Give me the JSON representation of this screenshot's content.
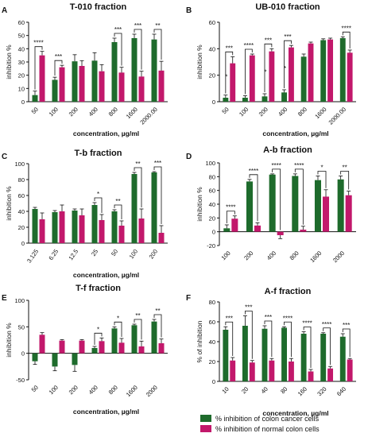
{
  "colors": {
    "cancer": "#1e6b2c",
    "normal": "#c2186b"
  },
  "legend": {
    "cancer": "% inhibition of colon cancer cells",
    "normal": "% inhibition of normal colon cells"
  },
  "chart_data": [
    {
      "panel": "A",
      "type": "bar",
      "title": "T-010 fraction",
      "xlabel": "concentration, µg/ml",
      "ylabel": "inhibition %",
      "ylim": [
        0,
        60
      ],
      "yticks": [
        0,
        10,
        20,
        30,
        40,
        50,
        60
      ],
      "categories": [
        "50",
        "100",
        "200",
        "400",
        "800",
        "1600",
        "2000.00"
      ],
      "series": [
        {
          "values": [
            5,
            16.5,
            30.5,
            31,
            45,
            48,
            47
          ],
          "errors": [
            3,
            2,
            5,
            6,
            3,
            3,
            4
          ]
        },
        {
          "values": [
            35,
            26,
            27,
            23,
            22,
            19,
            23.5
          ],
          "errors": [
            3,
            1.5,
            4,
            5,
            4,
            4,
            7
          ]
        }
      ],
      "significance": [
        "****",
        "***",
        "",
        "",
        "***",
        "***",
        "**"
      ]
    },
    {
      "panel": "B",
      "type": "bar",
      "title": "UB-010 fraction",
      "xlabel": "concentration, µg/ml",
      "ylabel": "inhibition %",
      "ylim": [
        0,
        60
      ],
      "yticks": [
        0,
        20,
        40,
        60
      ],
      "categories": [
        "50",
        "100",
        "200",
        "400",
        "800",
        "1600",
        "2000.00"
      ],
      "series": [
        {
          "values": [
            3,
            3,
            4,
            7,
            34,
            46.5,
            48
          ],
          "errors": [
            2,
            1.5,
            2,
            2,
            2,
            1,
            1
          ]
        },
        {
          "values": [
            29,
            35,
            38,
            41,
            44,
            47,
            37
          ],
          "errors": [
            5,
            1,
            2,
            1.5,
            1,
            1,
            2
          ]
        }
      ],
      "significance": [
        "***",
        "****",
        "***",
        "***",
        "",
        "",
        "****"
      ],
      "significance_low": [
        "*",
        "",
        "*",
        "*",
        "",
        "",
        ""
      ]
    },
    {
      "panel": "C",
      "type": "bar",
      "title": "T-b fraction",
      "xlabel": "concentration, µg/ml",
      "ylabel": "inhibition %",
      "ylim": [
        0,
        100
      ],
      "yticks": [
        0,
        20,
        40,
        60,
        80,
        100
      ],
      "categories": [
        "3.125",
        "6.25",
        "12.5",
        "25",
        "50",
        "100",
        "200"
      ],
      "series": [
        {
          "values": [
            43,
            39,
            41,
            48,
            40,
            87,
            89
          ],
          "errors": [
            2,
            2,
            2,
            3,
            2,
            2,
            1
          ]
        },
        {
          "values": [
            30,
            40,
            35,
            29,
            22,
            31,
            13
          ],
          "errors": [
            8,
            8,
            8,
            7,
            6,
            12,
            9
          ]
        }
      ],
      "significance": [
        "",
        "",
        "",
        "*",
        "**",
        "**",
        "***"
      ]
    },
    {
      "panel": "D",
      "type": "bar",
      "title": "A-b fraction",
      "xlabel": "",
      "ylabel": "inhibition %",
      "ylim": [
        -20,
        100
      ],
      "yticks": [
        -20,
        0,
        20,
        40,
        60,
        80,
        100
      ],
      "categories": [
        "100",
        "200",
        "400",
        "800",
        "1600",
        "2000"
      ],
      "series": [
        {
          "values": [
            5,
            73,
            83,
            81,
            75,
            76
          ],
          "errors": [
            5,
            3,
            1,
            3,
            6,
            5
          ]
        },
        {
          "values": [
            19,
            9,
            -5,
            3,
            51,
            53
          ],
          "errors": [
            4,
            4,
            5,
            5,
            10,
            6
          ]
        }
      ],
      "significance": [
        "****",
        "****",
        "****",
        "****",
        "*",
        "**"
      ]
    },
    {
      "panel": "E",
      "type": "bar",
      "title": "T-f fraction",
      "xlabel": "concentration, µg/ml",
      "ylabel": "inhibition %",
      "ylim": [
        -50,
        100
      ],
      "yticks": [
        -50,
        0,
        50,
        100
      ],
      "categories": [
        "50",
        "100",
        "200",
        "400",
        "800",
        "1600",
        "2000"
      ],
      "series": [
        {
          "values": [
            -15,
            -25,
            -22,
            10,
            47,
            53,
            60
          ],
          "errors": [
            6,
            8,
            12,
            3,
            3,
            2,
            4
          ]
        },
        {
          "values": [
            35,
            24,
            24,
            23,
            20,
            13,
            19
          ],
          "errors": [
            4,
            2,
            2,
            6,
            8,
            10,
            8
          ]
        }
      ],
      "significance": [
        "",
        "",
        "",
        "*",
        "*",
        "**",
        "**"
      ]
    },
    {
      "panel": "F",
      "type": "bar",
      "title": "A-f fraction",
      "xlabel": "concentration, µg/ml",
      "ylabel": "% of inhibition",
      "ylim": [
        0,
        80
      ],
      "yticks": [
        0,
        20,
        40,
        60,
        80
      ],
      "categories": [
        "10",
        "20",
        "40",
        "80",
        "160",
        "320",
        "640"
      ],
      "series": [
        {
          "values": [
            52,
            56,
            53,
            54,
            48,
            48,
            45
          ],
          "errors": [
            3,
            10,
            3,
            1,
            2,
            1,
            3
          ]
        },
        {
          "values": [
            21,
            19,
            21,
            20,
            10,
            13,
            22
          ],
          "errors": [
            3,
            2,
            2,
            3,
            2,
            2,
            1
          ]
        }
      ],
      "significance": [
        "***",
        "***",
        "***",
        "****",
        "****",
        "****",
        "***"
      ]
    }
  ]
}
